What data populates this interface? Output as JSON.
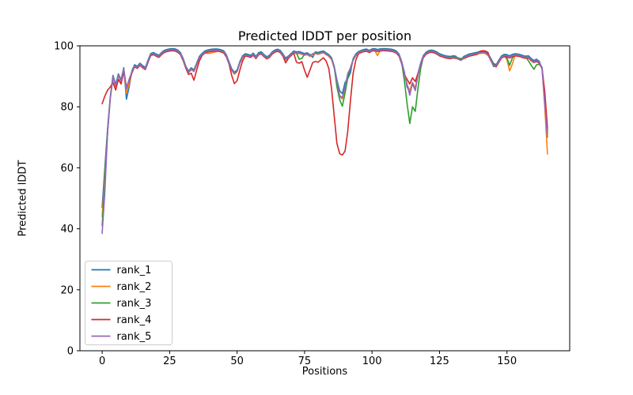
{
  "figure": {
    "background": "#ffffff",
    "spine_color": "#000000",
    "tick_color": "#000000",
    "legend_border_color": "#cccccc",
    "legend_background": "#ffffff"
  },
  "chart_data": {
    "type": "line",
    "title": "Predicted lDDT per position",
    "xlabel": "Positions",
    "ylabel": "Predicted lDDT",
    "xlim": [
      -8.25,
      173.25
    ],
    "ylim": [
      0,
      100
    ],
    "xticks": [
      0,
      25,
      50,
      75,
      100,
      125,
      150
    ],
    "yticks": [
      0,
      20,
      40,
      60,
      80,
      100
    ],
    "grid": false,
    "legend": {
      "position": "lower-left"
    },
    "x_start": 0,
    "x_step": 1,
    "encoding_note": "values[i] = overrides[i] if present, else base[i] + offset; x = index",
    "base": [
      42,
      58,
      72,
      83,
      90,
      87,
      90.5,
      88.5,
      92.5,
      86,
      89,
      91.5,
      93.5,
      93,
      94,
      93.2,
      92.6,
      95,
      97.2,
      97.5,
      97,
      96.6,
      97.5,
      98.2,
      98.5,
      98.7,
      98.8,
      98.7,
      98.3,
      97.5,
      95.5,
      93,
      91.4,
      92.5,
      91.8,
      94,
      96.2,
      97.2,
      98,
      98.3,
      98.5,
      98.6,
      98.7,
      98.6,
      98.4,
      98.1,
      96.8,
      94.5,
      92.2,
      91,
      91.8,
      94.5,
      96.4,
      97.1,
      96.9,
      96.6,
      97.3,
      96.2,
      97.5,
      97.7,
      96.8,
      96.1,
      96.6,
      97.7,
      98.3,
      98.6,
      98.2,
      97,
      95.7,
      96.3,
      97.2,
      98,
      97.7,
      97.8,
      97.5,
      97.2,
      97.4,
      96.8,
      97.4,
      97.7,
      97.5,
      97.8,
      98,
      97.4,
      96.8,
      95.8,
      93,
      88.5,
      84.8,
      83.5,
      87,
      91,
      92.8,
      95.5,
      97,
      97.8,
      98.2,
      98.5,
      98.6,
      98.2,
      98.7,
      98.8,
      98.5,
      98.7,
      98.8,
      98.8,
      98.7,
      98.6,
      98.4,
      98,
      97,
      94.5,
      91,
      87.5,
      85,
      88,
      86,
      90.5,
      94,
      96.5,
      97.6,
      98.1,
      98.3,
      98.1,
      97.7,
      97.1,
      96.8,
      96.5,
      96.3,
      96.2,
      96.4,
      96.3,
      96,
      95.8,
      96.2,
      96.6,
      97,
      97.2,
      97.4,
      97.6,
      97.8,
      97.9,
      97.8,
      97.1,
      95.6,
      93.9,
      93.5,
      95,
      96.4,
      96.9,
      96.8,
      96.4,
      96.9,
      97.1,
      97,
      96.8,
      96.5,
      96.3,
      96.4,
      95.5,
      94.9,
      95.3,
      94.6,
      93,
      84,
      71
    ],
    "series": [
      {
        "name": "rank_1",
        "color": "#1f77b4",
        "offset": 0.3,
        "overrides": {
          "0": 47,
          "1": 60,
          "2": 73,
          "9": 82.5,
          "10": 86.5,
          "78": 96.2,
          "88": 85.2,
          "89": 84.3,
          "90": 88,
          "91": 89.2,
          "92": 91.2,
          "113": 86.5,
          "114": 84.8,
          "115": 87.5,
          "116": 85.5,
          "132": 95.7,
          "133": 95.4,
          "163": 92.5,
          "164": 83,
          "165": 72
        }
      },
      {
        "name": "rank_2",
        "color": "#ff7f0e",
        "offset": -0.3,
        "overrides": {
          "0": 44,
          "1": 57,
          "9": 84.5,
          "10": 87.5,
          "39": 97.5,
          "40": 97.6,
          "41": 97.8,
          "42": 98,
          "88": 83.3,
          "89": 82.6,
          "90": 86,
          "102": 96.8,
          "114": 85.3,
          "115": 88,
          "116": 86.2,
          "145": 93.3,
          "146": 93.1,
          "150": 95.5,
          "151": 91.8,
          "152": 94,
          "164": 80,
          "165": 64.5
        }
      },
      {
        "name": "rank_3",
        "color": "#2ca02c",
        "offset": 0,
        "overrides": {
          "0": 41,
          "1": 55,
          "73": 95.6,
          "74": 95.9,
          "87": 86.5,
          "88": 82.3,
          "89": 80.2,
          "90": 84.5,
          "91": 89.5,
          "112": 88.5,
          "113": 81,
          "114": 74.5,
          "115": 80,
          "116": 78.5,
          "117": 86,
          "118": 92.5,
          "150": 96,
          "151": 93.6,
          "152": 96,
          "158": 95,
          "159": 93.6,
          "160": 92.3,
          "161": 93.8,
          "162": 93.9,
          "165": 71
        }
      },
      {
        "name": "rank_4",
        "color": "#d62728",
        "offset": -0.4,
        "overrides": {
          "0": 81,
          "1": 83.5,
          "2": 85.5,
          "3": 86.5,
          "4": 88,
          "5": 85.5,
          "6": 89,
          "7": 87.5,
          "8": 91.5,
          "9": 86.5,
          "10": 88.5,
          "32": 90.6,
          "33": 91,
          "34": 88.7,
          "35": 92,
          "36": 95,
          "48": 90.3,
          "49": 87.6,
          "50": 88.6,
          "51": 92,
          "52": 95,
          "68": 94.4,
          "72": 94.6,
          "73": 94.3,
          "74": 94.8,
          "75": 92,
          "76": 89.7,
          "77": 92,
          "78": 94.5,
          "79": 94.9,
          "80": 94.6,
          "81": 95.4,
          "82": 96.1,
          "83": 95,
          "84": 92.5,
          "85": 86,
          "86": 77,
          "87": 68,
          "88": 64.6,
          "89": 64.2,
          "90": 65.5,
          "91": 72,
          "92": 82,
          "93": 91,
          "94": 95.3,
          "113": 89,
          "114": 87.5,
          "115": 89.5,
          "116": 88.3,
          "117": 91,
          "140": 98.2,
          "141": 98.4,
          "142": 98.3,
          "143": 97.8,
          "164": 85,
          "165": 73
        }
      },
      {
        "name": "rank_5",
        "color": "#9467bd",
        "offset": -0.1,
        "overrides": {
          "0": 38.5,
          "1": 52,
          "88": 83.6,
          "89": 83.1,
          "90": 86.5,
          "114": 83.8,
          "116": 85.3,
          "132": 95.6,
          "133": 95.2,
          "145": 93.2,
          "164": 81,
          "165": 70
        }
      }
    ]
  }
}
